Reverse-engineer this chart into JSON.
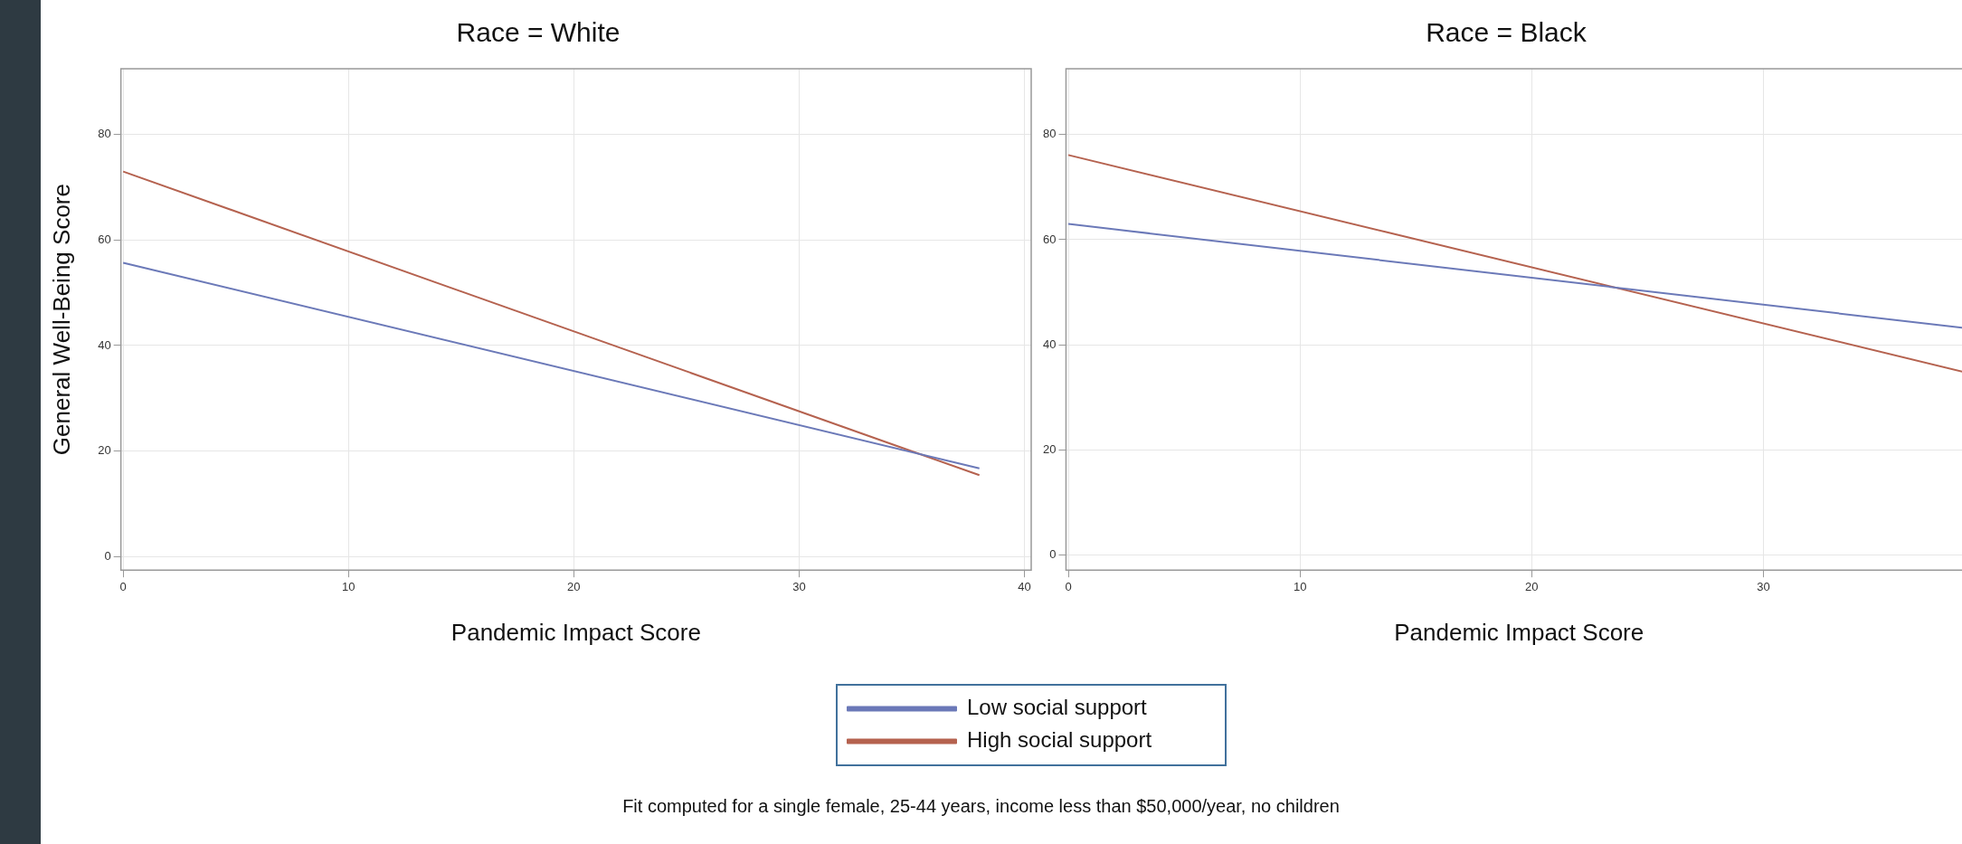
{
  "chart_data": [
    {
      "type": "line",
      "title": "Race = White",
      "xlabel": "Pandemic Impact Score",
      "ylabel": "General Well-Being Score",
      "xlim": [
        -0.1,
        40.3
      ],
      "xticks": [
        0,
        10,
        20,
        30,
        40
      ],
      "ylim": [
        -2.6,
        92.5
      ],
      "yticks": [
        0,
        20,
        40,
        60,
        80
      ],
      "grid": true,
      "marker": "none",
      "legend": "bottom",
      "annotations": [
        "Fit computed for a single female, 25-44 years, income less than $50,000/year, no children"
      ],
      "series": [
        {
          "name": "Low social support",
          "color": "#6b79b8",
          "x": [
            0,
            38
          ],
          "values": [
            55.7,
            16.7
          ]
        },
        {
          "name": "High social support",
          "color": "#b5624f",
          "x": [
            0,
            38
          ],
          "values": [
            73.0,
            15.4
          ]
        }
      ]
    },
    {
      "type": "line",
      "title": "Race = Black",
      "xlabel": "Pandemic Impact Score",
      "xlim": [
        -0.1,
        39
      ],
      "xticks": [
        0,
        10,
        20,
        30
      ],
      "ylim": [
        -2.8,
        92.5
      ],
      "yticks": [
        0,
        20,
        40,
        60,
        80
      ],
      "grid": true,
      "marker": "none",
      "series": [
        {
          "color": "#6b79b8",
          "x": [
            0,
            38.9
          ],
          "values": [
            63.0,
            43.1
          ]
        },
        {
          "color": "#b5624f",
          "x": [
            0,
            38.9
          ],
          "values": [
            76.1,
            34.6
          ]
        }
      ]
    }
  ]
}
